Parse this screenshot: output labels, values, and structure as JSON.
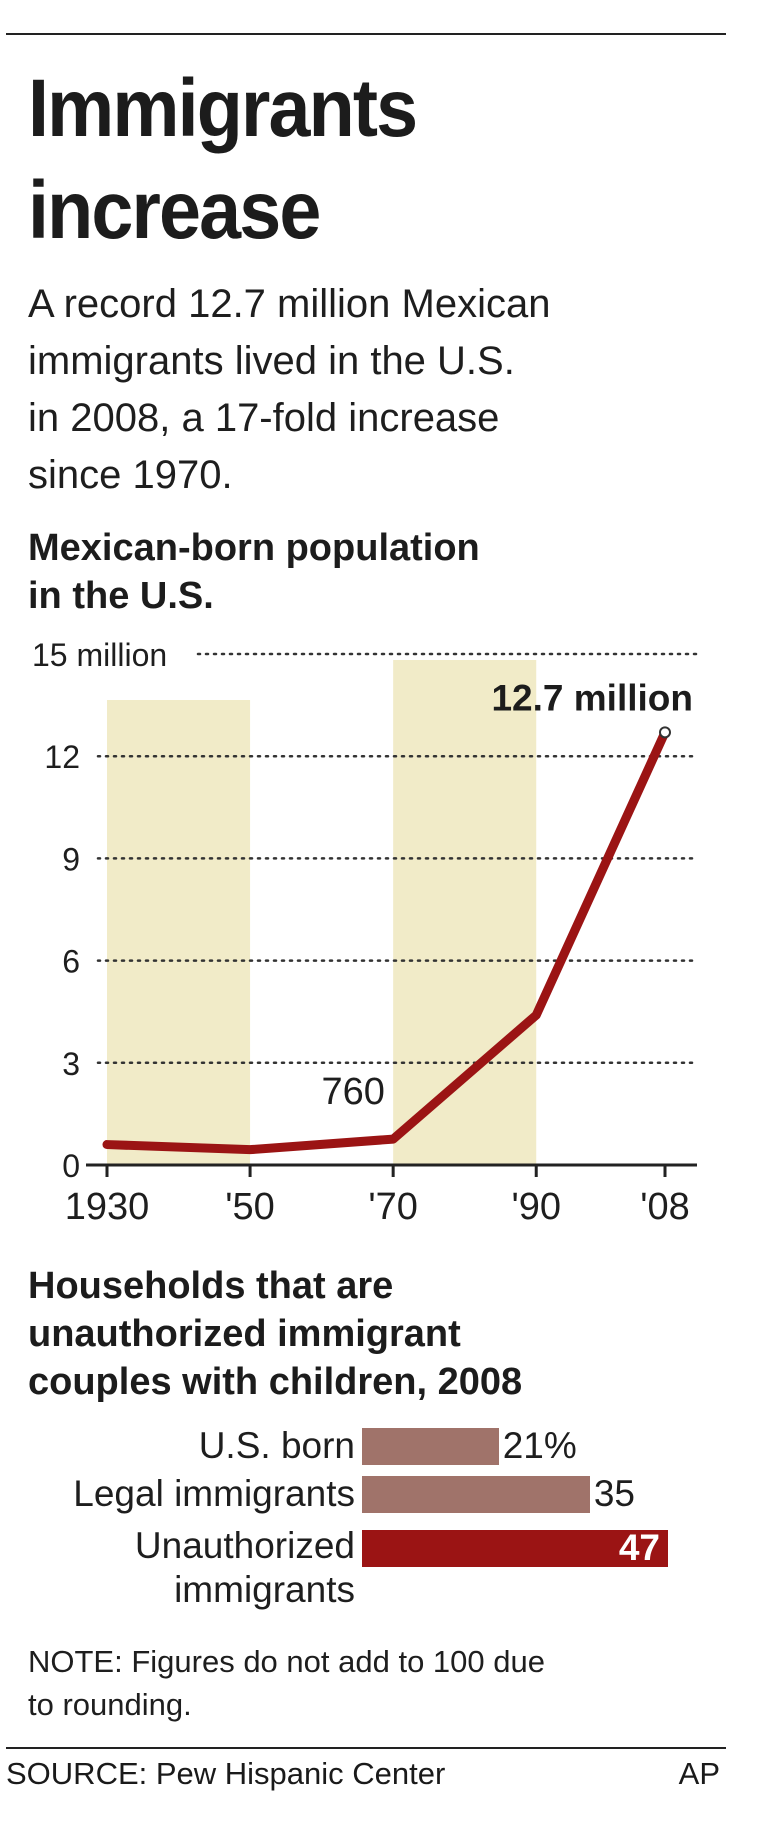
{
  "headline": {
    "title_lines": [
      "Immigrants",
      "increase"
    ],
    "subtitle_lines": [
      "A record 12.7 million Mexican",
      "immigrants lived in the U.S.",
      "in 2008, a 17-fold increase",
      "since 1970."
    ]
  },
  "chart_data": [
    {
      "type": "line",
      "title_lines": [
        "Mexican-born population",
        "in the U.S."
      ],
      "x": [
        1930,
        1950,
        1970,
        1990,
        2008
      ],
      "series": [
        {
          "values": [
            0.6,
            0.45,
            0.76,
            4.4,
            12.7
          ],
          "color": "#9b1414"
        }
      ],
      "xlim": [
        1930,
        2008
      ],
      "ylim": [
        0,
        15
      ],
      "yticks": [
        0,
        3,
        6,
        9,
        12,
        15
      ],
      "ytick_labels": [
        "0",
        "3",
        "6",
        "9",
        "12",
        "15 million"
      ],
      "xtick_labels": [
        "1930",
        "'50",
        "'70",
        "'90",
        "'08"
      ],
      "grid": "dotted horizontal",
      "shaded_spans": [
        {
          "from": 1930,
          "to": 1950,
          "color": "#f1ebc8"
        },
        {
          "from": 1970,
          "to": 1990,
          "color": "#f1ebc8"
        }
      ],
      "annotations": [
        {
          "x": 1970,
          "y": 0.76,
          "text": "760"
        },
        {
          "x": 2008,
          "y": 12.7,
          "text": "12.7 million"
        }
      ]
    },
    {
      "type": "bar",
      "orientation": "horizontal",
      "title_lines": [
        "Households that are",
        "unauthorized immigrant",
        "couples with children, 2008"
      ],
      "categories": [
        [
          "U.S. born"
        ],
        [
          "Legal immigrants"
        ],
        [
          "Unauthorized",
          "immigrants"
        ]
      ],
      "values": [
        21,
        35,
        47
      ],
      "value_labels": [
        "21%",
        "35",
        "47"
      ],
      "colors": [
        "#a0736a",
        "#a0736a",
        "#9b1414"
      ],
      "xlim": [
        0,
        47
      ]
    }
  ],
  "note_lines": [
    "NOTE: Figures do not add to 100 due",
    "to rounding."
  ],
  "footer": {
    "source": "SOURCE: Pew Hispanic Center",
    "credit": "AP"
  }
}
